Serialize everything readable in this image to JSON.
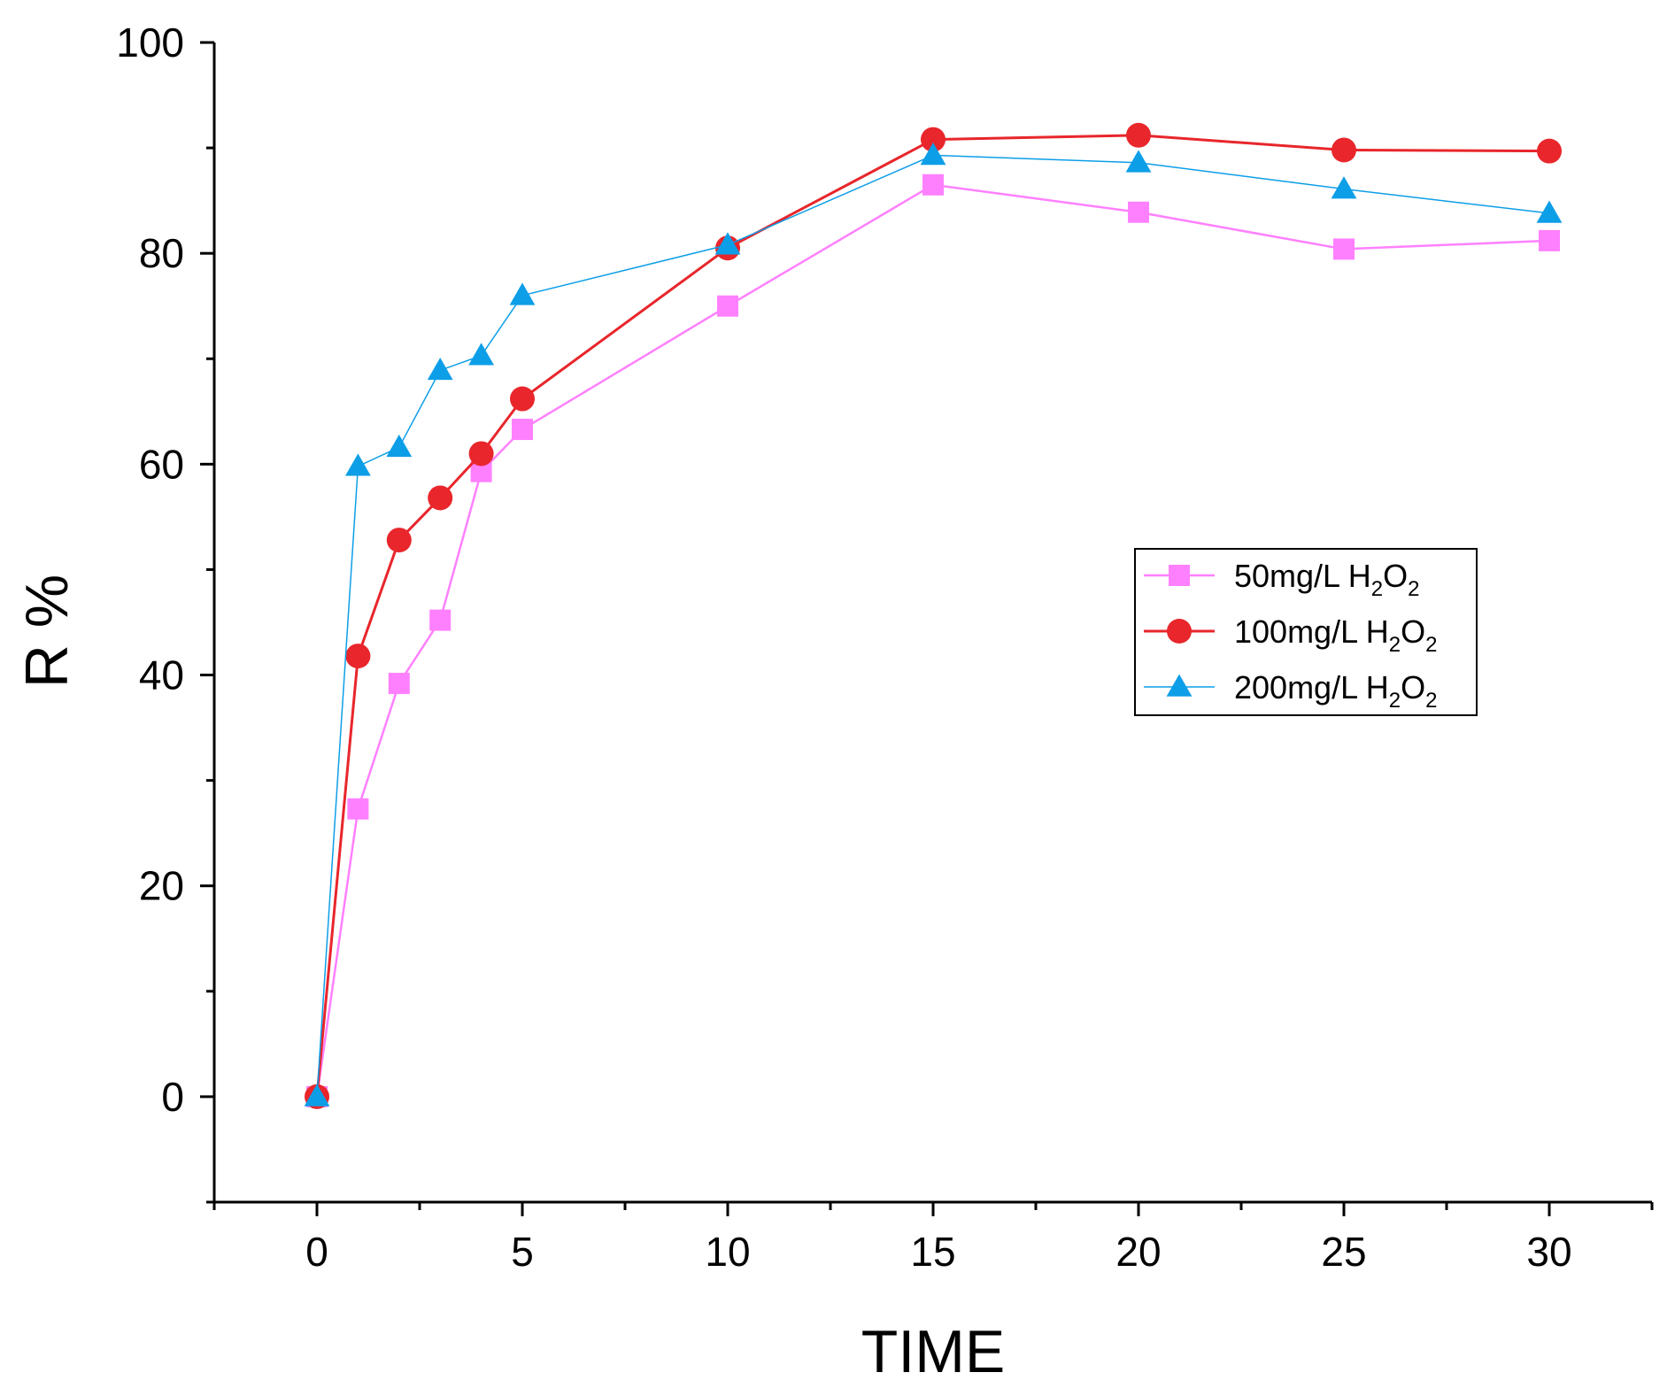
{
  "chart_data": {
    "type": "line",
    "title": "",
    "xlabel": "TIME",
    "ylabel": "R %",
    "xlim": [
      -2.5,
      32.5
    ],
    "ylim": [
      -10,
      100
    ],
    "x_major_ticks": [
      0,
      5,
      10,
      15,
      20,
      25,
      30
    ],
    "x_minor_ticks": [
      -2.5,
      2.5,
      7.5,
      12.5,
      17.5,
      22.5,
      27.5,
      32.5
    ],
    "y_major_ticks": [
      0,
      20,
      40,
      60,
      80,
      100
    ],
    "y_minor_ticks": [
      -10,
      10,
      30,
      50,
      70,
      90
    ],
    "x_tick_labels": [
      "0",
      "5",
      "10",
      "15",
      "20",
      "25",
      "30"
    ],
    "y_tick_labels": [
      "0",
      "20",
      "40",
      "60",
      "80",
      "100"
    ],
    "legend_position": "right-middle",
    "series": [
      {
        "name": "50mg/L H2O2",
        "label_main": "50mg/L H",
        "label_sub1": "2",
        "label_mid": "O",
        "label_sub2": "2",
        "color": "#ff80ff",
        "marker": "square",
        "x": [
          0,
          1,
          2,
          3,
          4,
          5,
          10,
          15,
          20,
          25,
          30
        ],
        "y": [
          0,
          27.3,
          39.2,
          45.2,
          59.3,
          63.3,
          75.0,
          86.5,
          83.9,
          80.4,
          81.2
        ]
      },
      {
        "name": "100mg/L H2O2",
        "label_main": "100mg/L H",
        "label_sub1": "2",
        "label_mid": "O",
        "label_sub2": "2",
        "color": "#e8262b",
        "marker": "circle",
        "x": [
          0,
          1,
          2,
          3,
          4,
          5,
          10,
          15,
          20,
          25,
          30
        ],
        "y": [
          0,
          41.8,
          52.8,
          56.8,
          61.0,
          66.2,
          80.5,
          90.8,
          91.2,
          89.8,
          89.7
        ]
      },
      {
        "name": "200mg/L H2O2",
        "label_main": "200mg/L H",
        "label_sub1": "2",
        "label_mid": "O",
        "label_sub2": "2",
        "color": "#0d9ee8",
        "marker": "triangle",
        "x": [
          0,
          1,
          2,
          3,
          4,
          5,
          10,
          15,
          20,
          25,
          30
        ],
        "y": [
          0,
          59.8,
          61.6,
          68.9,
          70.3,
          76.0,
          80.8,
          89.3,
          88.6,
          86.1,
          83.8
        ]
      }
    ]
  }
}
